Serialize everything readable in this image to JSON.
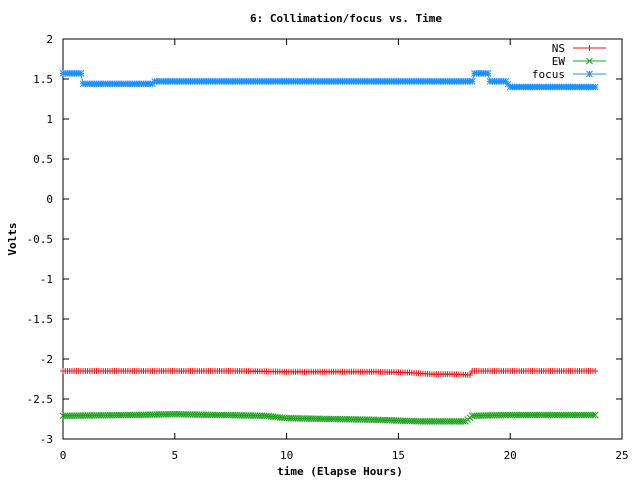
{
  "chart_data": {
    "type": "line",
    "title": "6: Collimation/focus vs. Time",
    "xlabel": "time (Elapse Hours)",
    "ylabel": "Volts",
    "xlim": [
      0,
      25
    ],
    "ylim": [
      -3,
      2
    ],
    "x_ticks": [
      0,
      5,
      10,
      15,
      20,
      25
    ],
    "x_tick_labels": [
      "0",
      "5",
      "10",
      "15",
      "20",
      "25"
    ],
    "y_ticks": [
      -3,
      -2.5,
      -2,
      -1.5,
      -1,
      -0.5,
      0,
      0.5,
      1,
      1.5,
      2
    ],
    "y_tick_labels": [
      "-3",
      "-2.5",
      "-2",
      "-1.5",
      "-1",
      "-0.5",
      "0",
      "0.5",
      "1",
      "1.5",
      "2"
    ],
    "grid": false,
    "legend_position": "top-right",
    "series": [
      {
        "name": "NS",
        "color": "#e41a1c",
        "marker": "plus",
        "points": [
          [
            0,
            -2.15
          ],
          [
            4,
            -2.15
          ],
          [
            8,
            -2.15
          ],
          [
            10,
            -2.16
          ],
          [
            12,
            -2.16
          ],
          [
            14,
            -2.16
          ],
          [
            15.5,
            -2.17
          ],
          [
            16.5,
            -2.19
          ],
          [
            17.5,
            -2.19
          ],
          [
            18.2,
            -2.2
          ],
          [
            18.3,
            -2.15
          ],
          [
            20,
            -2.15
          ],
          [
            22,
            -2.15
          ],
          [
            23.8,
            -2.15
          ]
        ]
      },
      {
        "name": "EW",
        "color": "#1fa21f",
        "marker": "x",
        "points": [
          [
            0,
            -2.71
          ],
          [
            3,
            -2.7
          ],
          [
            5,
            -2.69
          ],
          [
            7,
            -2.7
          ],
          [
            9,
            -2.71
          ],
          [
            10,
            -2.74
          ],
          [
            12,
            -2.75
          ],
          [
            14,
            -2.76
          ],
          [
            16,
            -2.78
          ],
          [
            18,
            -2.78
          ],
          [
            18.3,
            -2.71
          ],
          [
            20,
            -2.7
          ],
          [
            22,
            -2.7
          ],
          [
            23.8,
            -2.7
          ]
        ]
      },
      {
        "name": "focus",
        "color": "#1e90ff",
        "marker": "asterisk",
        "points": [
          [
            0,
            1.57
          ],
          [
            0.8,
            1.57
          ],
          [
            0.9,
            1.44
          ],
          [
            4,
            1.44
          ],
          [
            4.1,
            1.47
          ],
          [
            18.3,
            1.47
          ],
          [
            18.4,
            1.57
          ],
          [
            19.0,
            1.57
          ],
          [
            19.1,
            1.47
          ],
          [
            19.8,
            1.47
          ],
          [
            20.0,
            1.4
          ],
          [
            23.8,
            1.4
          ]
        ]
      }
    ]
  }
}
